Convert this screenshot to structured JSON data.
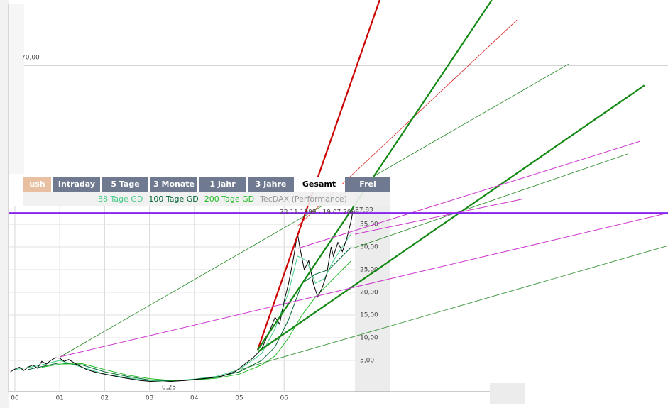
{
  "chart_data": {
    "type": "line",
    "tabs": [
      "ush",
      "Intraday",
      "5 Tage",
      "3 Monate",
      "1 Jahr",
      "3 Jahre",
      "Gesamt",
      "Frei"
    ],
    "active_tab": 6,
    "annotations": [
      "23.11.1999 - 19.07.2006",
      "37,83",
      "0,25"
    ],
    "xlim": [
      -0.142,
      14.557
    ],
    "ylim": [
      0,
      84.4
    ],
    "xticks": [
      {
        "value": 0,
        "label": "00"
      },
      {
        "value": 1,
        "label": "01"
      },
      {
        "value": 2,
        "label": "02"
      },
      {
        "value": 3,
        "label": "03"
      },
      {
        "value": 4,
        "label": "04"
      },
      {
        "value": 5,
        "label": "05"
      },
      {
        "value": 6,
        "label": "06"
      }
    ],
    "yticks": [
      {
        "value": 5,
        "label": "5,00"
      },
      {
        "value": 10,
        "label": "10,00"
      },
      {
        "value": 15,
        "label": "15,00"
      },
      {
        "value": 20,
        "label": "20,00"
      },
      {
        "value": 25,
        "label": "25,00"
      },
      {
        "value": 30,
        "label": "30,00"
      },
      {
        "value": 35,
        "label": "35,00"
      },
      {
        "value": 70,
        "label": "70,00"
      }
    ],
    "grid": true,
    "series": [
      {
        "name": "38 Tage GD",
        "color": "#44cc88",
        "x": [
          0,
          0.5,
          1,
          1.5,
          2,
          2.5,
          3,
          3.5,
          4,
          4.5,
          5,
          5.5,
          5.8,
          6.1,
          6.3,
          6.5,
          6.7,
          6.9,
          7.1,
          7.3,
          7.5
        ],
        "values": [
          3,
          3.8,
          5,
          3.5,
          2,
          1.2,
          0.5,
          0.5,
          0.9,
          1.5,
          3,
          6.5,
          12,
          20,
          28,
          27,
          22,
          23,
          27,
          30,
          33
        ]
      },
      {
        "name": "100 Tage GD",
        "color": "#006633",
        "x": [
          0.3,
          1,
          1.5,
          2,
          2.5,
          3,
          3.5,
          4,
          4.5,
          5,
          5.5,
          5.8,
          6.1,
          6.4,
          6.7,
          7,
          7.3,
          7.5
        ],
        "values": [
          3,
          4.5,
          4,
          2.5,
          1.5,
          0.7,
          0.5,
          0.8,
          1.3,
          2.5,
          5,
          8,
          14,
          22,
          24,
          25,
          28,
          30
        ]
      },
      {
        "name": "200 Tage GD",
        "color": "#22bb22",
        "x": [
          0.6,
          1,
          1.5,
          2,
          2.5,
          3,
          3.5,
          4,
          4.5,
          5,
          5.5,
          5.8,
          6.1,
          6.4,
          6.7,
          7,
          7.3,
          7.5
        ],
        "values": [
          3.5,
          4.2,
          4.3,
          3,
          1.8,
          1,
          0.6,
          0.7,
          1.1,
          2,
          4,
          6,
          10,
          15,
          19,
          22,
          25,
          27
        ]
      },
      {
        "name": "TecDAX (Performance)",
        "color": "#000000",
        "label_color": "#999999",
        "x": [
          -0.1,
          0,
          0.1,
          0.2,
          0.3,
          0.4,
          0.5,
          0.6,
          0.7,
          0.8,
          0.9,
          1.0,
          1.1,
          1.2,
          1.4,
          1.6,
          1.8,
          2.0,
          2.2,
          2.4,
          2.6,
          2.8,
          3.0,
          3.2,
          3.3,
          3.5,
          3.8,
          4.0,
          4.3,
          4.6,
          4.9,
          5.1,
          5.3,
          5.5,
          5.7,
          5.8,
          5.9,
          6.0,
          6.1,
          6.2,
          6.3,
          6.35,
          6.45,
          6.55,
          6.65,
          6.75,
          6.85,
          6.95,
          7.05,
          7.1,
          7.2,
          7.3,
          7.4,
          7.5,
          7.53
        ],
        "values": [
          2.5,
          3.1,
          3.5,
          2.8,
          3.6,
          4.0,
          3.3,
          4.8,
          4.2,
          5.0,
          5.6,
          5.5,
          4.8,
          5.2,
          4.0,
          3.0,
          2.4,
          2.0,
          1.6,
          1.2,
          0.9,
          0.6,
          0.4,
          0.3,
          0.25,
          0.4,
          0.6,
          0.8,
          1.1,
          1.5,
          2.5,
          4.0,
          5.5,
          7.5,
          12,
          14.5,
          13,
          18,
          22,
          27,
          33,
          30,
          25,
          27,
          22,
          19,
          21,
          24,
          30,
          28,
          31,
          29,
          32,
          36,
          37.83
        ]
      }
    ],
    "trendlines": [
      {
        "color": "#cc0000",
        "width": 2.2,
        "x": [
          5.41,
          8.13
        ],
        "values": [
          7.3,
          84.4
        ]
      },
      {
        "color": "#dd2222",
        "width": 0.8,
        "x": [
          6.31,
          11.19
        ],
        "values": [
          34.7,
          80
        ]
      },
      {
        "color": "#118811",
        "width": 2.2,
        "x": [
          5.41,
          10.63
        ],
        "values": [
          7.3,
          84.4
        ]
      },
      {
        "color": "#118811",
        "width": 2.2,
        "x": [
          5.43,
          14.03
        ],
        "values": [
          7.0,
          65.6
        ]
      },
      {
        "color": "#228822",
        "width": 0.8,
        "x": [
          1.01,
          12.34
        ],
        "values": [
          5.8,
          70.3
        ]
      },
      {
        "color": "#228822",
        "width": 0.8,
        "x": [
          5.05,
          14.56
        ],
        "values": [
          3.1,
          30.3
        ]
      },
      {
        "color": "#228822",
        "width": 0.8,
        "x": [
          7.53,
          13.66
        ],
        "values": [
          29.7,
          50.5
        ]
      },
      {
        "color": "#cc33cc",
        "width": 1,
        "x": [
          1.01,
          14.56
        ],
        "values": [
          5.8,
          37.5
        ]
      },
      {
        "color": "#cc33cc",
        "width": 1,
        "x": [
          6.31,
          13.94
        ],
        "values": [
          29.7,
          53.3
        ]
      },
      {
        "color": "#cc33cc",
        "width": 1,
        "x": [
          7.58,
          11.34
        ],
        "values": [
          32.8,
          40.6
        ]
      },
      {
        "color": "#8822ee",
        "width": 2,
        "x": [
          -0.142,
          14.557
        ],
        "values": [
          37.5,
          37.5
        ]
      }
    ]
  }
}
